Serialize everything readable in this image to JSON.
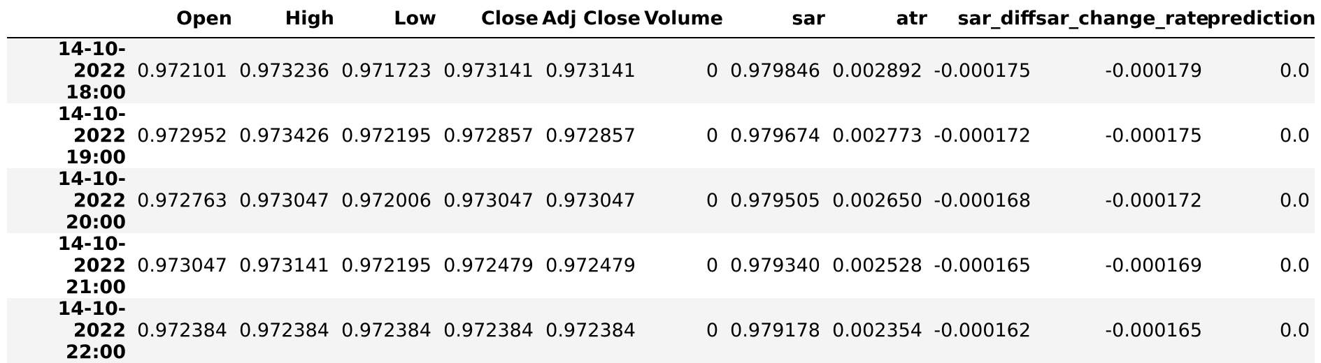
{
  "columns": [
    "",
    "Open",
    "High",
    "Low",
    "Close",
    "Adj Close",
    "Volume",
    "sar",
    "atr",
    "sar_diff",
    "sar_change_rate",
    "prediction"
  ],
  "rows": [
    {
      "index_date": "14-10-2022",
      "index_time": "18:00",
      "cells": [
        "0.972101",
        "0.973236",
        "0.971723",
        "0.973141",
        "0.973141",
        "0",
        "0.979846",
        "0.002892",
        "-0.000175",
        "-0.000179",
        "0.0"
      ]
    },
    {
      "index_date": "14-10-2022",
      "index_time": "19:00",
      "cells": [
        "0.972952",
        "0.973426",
        "0.972195",
        "0.972857",
        "0.972857",
        "0",
        "0.979674",
        "0.002773",
        "-0.000172",
        "-0.000175",
        "0.0"
      ]
    },
    {
      "index_date": "14-10-2022",
      "index_time": "20:00",
      "cells": [
        "0.972763",
        "0.973047",
        "0.972006",
        "0.973047",
        "0.973047",
        "0",
        "0.979505",
        "0.002650",
        "-0.000168",
        "-0.000172",
        "0.0"
      ]
    },
    {
      "index_date": "14-10-2022",
      "index_time": "21:00",
      "cells": [
        "0.973047",
        "0.973141",
        "0.972195",
        "0.972479",
        "0.972479",
        "0",
        "0.979340",
        "0.002528",
        "-0.000165",
        "-0.000169",
        "0.0"
      ]
    },
    {
      "index_date": "14-10-2022",
      "index_time": "22:00",
      "cells": [
        "0.972384",
        "0.972384",
        "0.972384",
        "0.972384",
        "0.972384",
        "0",
        "0.979178",
        "0.002354",
        "-0.000162",
        "-0.000165",
        "0.0"
      ]
    }
  ]
}
